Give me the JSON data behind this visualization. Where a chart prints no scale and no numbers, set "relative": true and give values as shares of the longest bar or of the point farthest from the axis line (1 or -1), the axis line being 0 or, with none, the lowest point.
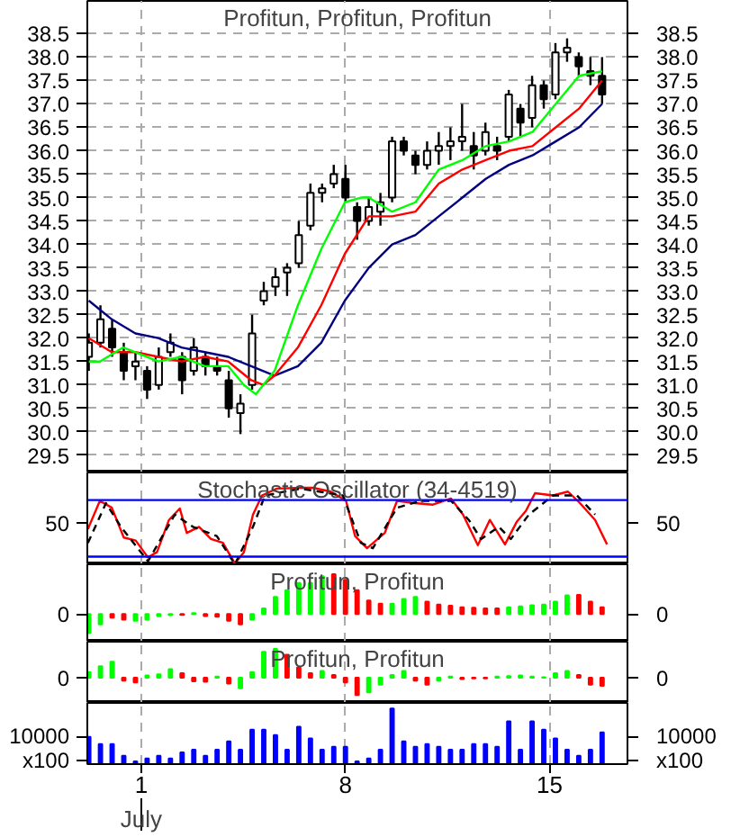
{
  "chart_data": [
    {
      "type": "candlestick",
      "title": "Profitun, Profitun, Profitun",
      "x": [
        -0.8,
        -0.4,
        0,
        0.4,
        0.8,
        1.2,
        1.6,
        2,
        2.4,
        2.8,
        3.2,
        3.6,
        4,
        4.4,
        4.8,
        5.2,
        5.6,
        6,
        6.4,
        6.8,
        7.2,
        7.6,
        8,
        8.4,
        8.8,
        9.2,
        9.6,
        10,
        10.4,
        10.8,
        11.2,
        11.6,
        12,
        12.4,
        12.8,
        13.2,
        13.6,
        14,
        14.4,
        14.8,
        15.2,
        15.6,
        16,
        16.4,
        16.8
      ],
      "ohlc": [
        [
          31.6,
          32.1,
          31.3,
          31.9
        ],
        [
          31.9,
          32.7,
          31.8,
          32.4
        ],
        [
          32.2,
          32.4,
          31.6,
          31.8
        ],
        [
          31.7,
          31.9,
          31.1,
          31.3
        ],
        [
          31.4,
          31.7,
          31.1,
          31.5
        ],
        [
          31.3,
          31.4,
          30.7,
          30.9
        ],
        [
          31.0,
          31.8,
          30.9,
          31.6
        ],
        [
          31.7,
          32.1,
          31.6,
          31.9
        ],
        [
          31.6,
          31.7,
          30.8,
          31.1
        ],
        [
          31.3,
          32.0,
          31.2,
          31.8
        ],
        [
          31.6,
          31.7,
          31.2,
          31.4
        ],
        [
          31.4,
          31.6,
          31.2,
          31.3
        ],
        [
          31.1,
          31.3,
          30.3,
          30.5
        ],
        [
          30.4,
          30.8,
          29.95,
          30.6
        ],
        [
          31.0,
          32.5,
          30.9,
          32.1
        ],
        [
          32.8,
          33.2,
          32.7,
          33.0
        ],
        [
          33.1,
          33.5,
          32.9,
          33.3
        ],
        [
          33.4,
          33.6,
          32.9,
          33.5
        ],
        [
          33.6,
          34.5,
          33.5,
          34.2
        ],
        [
          34.4,
          35.3,
          34.3,
          35.1
        ],
        [
          35.1,
          35.3,
          34.9,
          35.2
        ],
        [
          35.3,
          35.7,
          35.2,
          35.5
        ],
        [
          35.4,
          35.7,
          34.9,
          35.0
        ],
        [
          34.8,
          34.9,
          34.1,
          34.5
        ],
        [
          34.5,
          35.0,
          34.4,
          34.8
        ],
        [
          34.7,
          35.1,
          34.4,
          34.9
        ],
        [
          35.0,
          36.3,
          34.9,
          36.2
        ],
        [
          36.2,
          36.3,
          35.9,
          36.0
        ],
        [
          35.9,
          36.0,
          35.5,
          35.7
        ],
        [
          35.7,
          36.2,
          35.6,
          36.0
        ],
        [
          36.0,
          36.4,
          35.7,
          36.1
        ],
        [
          36.1,
          36.5,
          35.8,
          36.2
        ],
        [
          36.2,
          37.0,
          36.0,
          36.3
        ],
        [
          36.1,
          36.4,
          35.6,
          35.9
        ],
        [
          36.0,
          36.6,
          35.9,
          36.4
        ],
        [
          36.1,
          36.3,
          35.8,
          36.0
        ],
        [
          36.3,
          37.3,
          36.2,
          37.2
        ],
        [
          36.9,
          37.0,
          36.3,
          36.6
        ],
        [
          36.7,
          37.6,
          36.5,
          37.4
        ],
        [
          37.4,
          37.5,
          36.9,
          37.1
        ],
        [
          37.2,
          38.3,
          37.1,
          38.1
        ],
        [
          38.1,
          38.4,
          37.9,
          38.2
        ],
        [
          38.0,
          38.1,
          37.6,
          37.8
        ],
        [
          37.7,
          38.0,
          37.4,
          37.6
        ],
        [
          37.6,
          38.0,
          37.0,
          37.2
        ]
      ],
      "color": "#000000",
      "series": [
        {
          "type": "line",
          "color": "#000080",
          "x": [
            -0.8,
            -0.01,
            0.8,
            1.58,
            2.38,
            3.18,
            3.98,
            4.77,
            5.57,
            6.37,
            7.17,
            7.98,
            8.8,
            9.6,
            10.4,
            11.2,
            12.01,
            12.81,
            13.61,
            14.41,
            15.21,
            16.01,
            16.8
          ],
          "values": [
            32.8,
            32.4,
            32.1,
            32.0,
            31.8,
            31.7,
            31.6,
            31.4,
            31.2,
            31.4,
            31.9,
            32.8,
            33.5,
            34.0,
            34.2,
            34.6,
            35.0,
            35.4,
            35.7,
            35.9,
            36.2,
            36.5,
            37.0
          ]
        },
        {
          "type": "line",
          "color": "#ff0000",
          "x": [
            -0.8,
            -0.01,
            0.8,
            1.58,
            2.38,
            3.18,
            3.98,
            4.77,
            5.18,
            5.57,
            6.37,
            7.17,
            7.98,
            8.8,
            9.6,
            10.4,
            11.2,
            12.01,
            12.81,
            13.61,
            14.41,
            15.21,
            16.01,
            16.8
          ],
          "values": [
            32.0,
            31.7,
            31.7,
            31.6,
            31.5,
            31.6,
            31.5,
            31.1,
            31.0,
            31.2,
            31.8,
            32.7,
            33.8,
            34.6,
            34.6,
            34.7,
            35.3,
            35.6,
            35.8,
            36.0,
            36.1,
            36.5,
            36.9,
            37.5
          ]
        },
        {
          "type": "line",
          "color": "#00ff00",
          "x": [
            -0.8,
            -0.42,
            0.38,
            0.8,
            1.58,
            2.38,
            3.18,
            3.98,
            4.52,
            4.93,
            5.57,
            6.37,
            7.17,
            7.98,
            8.53,
            8.8,
            9.6,
            10.4,
            11.2,
            12.01,
            12.81,
            13.61,
            14.41,
            15.21,
            16.01,
            16.8
          ],
          "values": [
            31.5,
            31.5,
            31.8,
            31.7,
            31.5,
            31.6,
            31.4,
            31.4,
            31.0,
            30.8,
            31.3,
            32.7,
            33.9,
            34.9,
            35.0,
            35.0,
            34.7,
            34.9,
            35.6,
            35.8,
            36.1,
            36.2,
            36.4,
            37.0,
            37.6,
            37.7
          ]
        }
      ],
      "xlim": [
        -0.85,
        17.67
      ],
      "xticks": [
        1,
        8,
        15
      ],
      "ylim": [
        29.13,
        39.2
      ],
      "yticks": [
        29.5,
        {
          "value": 30,
          "label": "30.0"
        },
        30.5,
        {
          "value": 31,
          "label": "31.0"
        },
        31.5,
        {
          "value": 32,
          "label": "32.0"
        },
        32.5,
        {
          "value": 33,
          "label": "33.0"
        },
        33.5,
        {
          "value": 34,
          "label": "34.0"
        },
        34.5,
        {
          "value": 35,
          "label": "35.0"
        },
        35.5,
        {
          "value": 36,
          "label": "36.0"
        },
        36.5,
        {
          "value": 37,
          "label": "37.0"
        },
        37.5,
        {
          "value": 38,
          "label": "38.0"
        },
        38.5
      ],
      "y2lim": [
        29.13,
        39.2
      ],
      "y2ticks": [
        29.5,
        {
          "value": 30,
          "label": "30.0"
        },
        30.5,
        {
          "value": 31,
          "label": "31.0"
        },
        31.5,
        {
          "value": 32,
          "label": "32.0"
        },
        32.5,
        {
          "value": 33,
          "label": "33.0"
        },
        33.5,
        {
          "value": 34,
          "label": "34.0"
        },
        34.5,
        {
          "value": 35,
          "label": "35.0"
        },
        35.5,
        {
          "value": 36,
          "label": "36.0"
        },
        36.5,
        {
          "value": 37,
          "label": "37.0"
        },
        37.5,
        {
          "value": 38,
          "label": "38.0"
        },
        38.5
      ],
      "tick_labels": "y",
      "grid": true
    },
    {
      "type": "line",
      "title": "Stochastic Oscillator (34-4519)",
      "relative": true,
      "annotations": [
        "50"
      ],
      "series": [
        {
          "color": "#ff0000",
          "line_style": "solid",
          "x": [
            -0.83,
            -0.42,
            -0.01,
            0.4,
            0.81,
            1.23,
            1.54,
            1.95,
            2.32,
            2.56,
            2.98,
            3.39,
            3.8,
            4.21,
            4.52,
            4.83,
            5.14,
            5.65,
            6.47,
            6.89,
            7.5,
            8.02,
            8.33,
            8.74,
            9.35,
            9.77,
            10.38,
            11.0,
            11.62,
            12.03,
            12.54,
            12.95,
            13.47,
            13.88,
            14.19,
            14.5,
            15.12,
            15.63,
            16.04,
            16.56,
            16.97
          ],
          "values": [
            0.46,
            0.83,
            0.74,
            0.35,
            0.31,
            0.09,
            0.16,
            0.58,
            0.73,
            0.41,
            0.49,
            0.33,
            0.28,
            0.01,
            0.16,
            0.65,
            0.9,
            0.99,
            1,
            1,
            0.95,
            0.83,
            0.37,
            0.21,
            0.41,
            0.83,
            0.8,
            0.78,
            0.86,
            0.65,
            0.25,
            0.58,
            0.26,
            0.56,
            0.7,
            0.93,
            0.9,
            0.95,
            0.8,
            0.58,
            0.26
          ]
        },
        {
          "color": "#000000",
          "line_style": "dashed",
          "x": [
            -0.83,
            -0.21,
            0.3,
            1.23,
            2.15,
            2.77,
            3.59,
            4.21,
            4.83,
            5.24,
            6.47,
            7.91,
            8.53,
            8.94,
            9.77,
            10.59,
            11.62,
            12.23,
            12.65,
            13.26,
            13.67,
            14.29,
            15.12,
            15.94,
            16.56
          ],
          "values": [
            0.28,
            0.8,
            0.49,
            0.04,
            0.65,
            0.49,
            0.37,
            0,
            0.49,
            0.9,
            0.99,
            0.9,
            0.28,
            0.21,
            0.74,
            0.83,
            0.83,
            0.58,
            0.33,
            0.49,
            0.33,
            0.65,
            0.9,
            0.9,
            0.65
          ]
        }
      ],
      "ref_lines": [
        {
          "axis": "y",
          "value": 0.84,
          "color": "#0000ff"
        },
        {
          "axis": "y",
          "value": 0.1,
          "color": "#0000ff"
        }
      ],
      "xlim": [
        -0.85,
        17.67
      ],
      "xticks": [
        1,
        8,
        15
      ],
      "tick_labels": "y",
      "grid": "x"
    },
    {
      "type": "bar",
      "title": "Profitun, Profitun",
      "relative": true,
      "x": [
        -0.8,
        -0.4,
        0,
        0.4,
        0.8,
        1.2,
        1.6,
        2,
        2.4,
        2.8,
        3.2,
        3.6,
        4,
        4.4,
        4.8,
        5.2,
        5.6,
        6,
        6.4,
        6.8,
        7.2,
        7.6,
        8,
        8.4,
        8.8,
        9.2,
        9.6,
        10,
        10.4,
        10.8,
        11.2,
        11.6,
        12,
        12.4,
        12.8,
        13.2,
        13.6,
        14,
        14.4,
        14.8,
        15.2,
        15.6,
        16,
        16.4,
        16.8
      ],
      "values": [
        -0.48,
        -0.26,
        -0.09,
        -0.14,
        -0.17,
        -0.14,
        -0.05,
        -0.03,
        -0.02,
        0.02,
        -0.05,
        -0.07,
        -0.17,
        -0.26,
        -0.14,
        0.14,
        0.43,
        0.6,
        0.78,
        0.78,
        0.95,
        1,
        0.86,
        0.6,
        0.34,
        0.26,
        0.26,
        0.38,
        0.43,
        0.31,
        0.24,
        0.21,
        0.17,
        0.16,
        0.14,
        0.14,
        0.17,
        0.19,
        0.22,
        0.24,
        0.31,
        0.47,
        0.48,
        0.31,
        0.17
      ],
      "colors": [
        "#00ff00",
        "#00ff00",
        "#ff0000",
        "#ff0000",
        "#00ff00",
        "#00ff00",
        "#00ff00",
        "#00ff00",
        "#ff0000",
        "#00ff00",
        "#ff0000",
        "#ff0000",
        "#ff0000",
        "#ff0000",
        "#00ff00",
        "#00ff00",
        "#00ff00",
        "#00ff00",
        "#00ff00",
        "#00ff00",
        "#00ff00",
        "#ff0000",
        "#ff0000",
        "#ff0000",
        "#ff0000",
        "#ff0000",
        "#00ff00",
        "#00ff00",
        "#00ff00",
        "#ff0000",
        "#ff0000",
        "#ff0000",
        "#ff0000",
        "#ff0000",
        "#ff0000",
        "#ff0000",
        "#00ff00",
        "#00ff00",
        "#00ff00",
        "#00ff00",
        "#00ff00",
        "#00ff00",
        "#ff0000",
        "#ff0000",
        "#ff0000"
      ],
      "annotations": [
        "0"
      ],
      "xlim": [
        -0.85,
        17.67
      ],
      "xticks": [
        1,
        8,
        15
      ],
      "tick_labels": "y",
      "grid": "x"
    },
    {
      "type": "bar",
      "title": "Profitun, Profitun",
      "relative": true,
      "x": [
        -0.8,
        -0.4,
        0,
        0.4,
        0.8,
        1.2,
        1.6,
        2,
        2.4,
        2.8,
        3.2,
        3.6,
        4,
        4.4,
        4.8,
        5.2,
        5.6,
        6,
        6.4,
        6.8,
        7.2,
        7.6,
        8,
        8.4,
        8.8,
        9.2,
        9.6,
        10,
        10.4,
        10.8,
        11.2,
        11.6,
        12,
        12.4,
        12.8,
        13.2,
        13.6,
        14,
        14.4,
        14.8,
        15.2,
        15.6,
        16,
        16.4,
        16.8
      ],
      "values": [
        0.2,
        0.4,
        0.56,
        -0.1,
        -0.16,
        0.08,
        0.12,
        0.3,
        0.16,
        -0.12,
        -0.14,
        0.04,
        -0.2,
        -0.36,
        0.2,
        0.9,
        1,
        0.8,
        0.36,
        0.16,
        0.24,
        0.1,
        -0.16,
        -0.6,
        -0.5,
        -0.24,
        0.1,
        0.24,
        -0.1,
        -0.24,
        -0.1,
        0.04,
        -0.04,
        -0.02,
        -0.02,
        0.04,
        0.06,
        0.08,
        0.04,
        0.02,
        0.16,
        0.24,
        0.1,
        -0.24,
        -0.28
      ],
      "colors": [
        "#00ff00",
        "#00ff00",
        "#00ff00",
        "#ff0000",
        "#ff0000",
        "#00ff00",
        "#00ff00",
        "#00ff00",
        "#ff0000",
        "#ff0000",
        "#ff0000",
        "#00ff00",
        "#ff0000",
        "#00ff00",
        "#00ff00",
        "#00ff00",
        "#00ff00",
        "#ff0000",
        "#ff0000",
        "#ff0000",
        "#00ff00",
        "#ff0000",
        "#ff0000",
        "#ff0000",
        "#00ff00",
        "#00ff00",
        "#00ff00",
        "#00ff00",
        "#ff0000",
        "#ff0000",
        "#00ff00",
        "#00ff00",
        "#ff0000",
        "#ff0000",
        "#ff0000",
        "#00ff00",
        "#00ff00",
        "#00ff00",
        "#00ff00",
        "#00ff00",
        "#00ff00",
        "#00ff00",
        "#ff0000",
        "#ff0000",
        "#ff0000"
      ],
      "annotations": [
        "0"
      ],
      "xlim": [
        -0.85,
        17.67
      ],
      "xticks": [
        1,
        8,
        15
      ],
      "tick_labels": "y",
      "grid": "x"
    },
    {
      "type": "bar",
      "relative": true,
      "color": "#0000ff",
      "x": [
        -0.8,
        -0.4,
        0,
        0.4,
        0.8,
        1.2,
        1.6,
        2,
        2.4,
        2.8,
        3.2,
        3.6,
        4,
        4.4,
        4.8,
        5.2,
        5.6,
        6,
        6.4,
        6.8,
        7.2,
        7.6,
        8,
        8.4,
        8.8,
        9.2,
        9.6,
        10,
        10.4,
        10.8,
        11.2,
        11.6,
        12,
        12.4,
        12.8,
        13.2,
        13.6,
        14,
        14.4,
        14.8,
        15.2,
        15.6,
        16,
        16.4,
        16.8
      ],
      "values": [
        0.49,
        0.36,
        0.36,
        0.15,
        0.05,
        0.1,
        0.15,
        0.1,
        0.21,
        0.26,
        0.15,
        0.26,
        0.41,
        0.26,
        0.62,
        0.62,
        0.52,
        0.26,
        0.67,
        0.46,
        0.26,
        0.31,
        0.31,
        0.05,
        0.1,
        0.26,
        1,
        0.41,
        0.31,
        0.36,
        0.31,
        0.26,
        0.26,
        0.36,
        0.36,
        0.31,
        0.77,
        0.26,
        0.77,
        0.62,
        0.46,
        0.26,
        0.15,
        0.26,
        0.57
      ],
      "annotations": [
        "10000",
        "x100"
      ],
      "xlabel": "July",
      "xlim": [
        -0.85,
        17.67
      ],
      "xticks": [
        1,
        8,
        15
      ],
      "grid": "x"
    }
  ]
}
